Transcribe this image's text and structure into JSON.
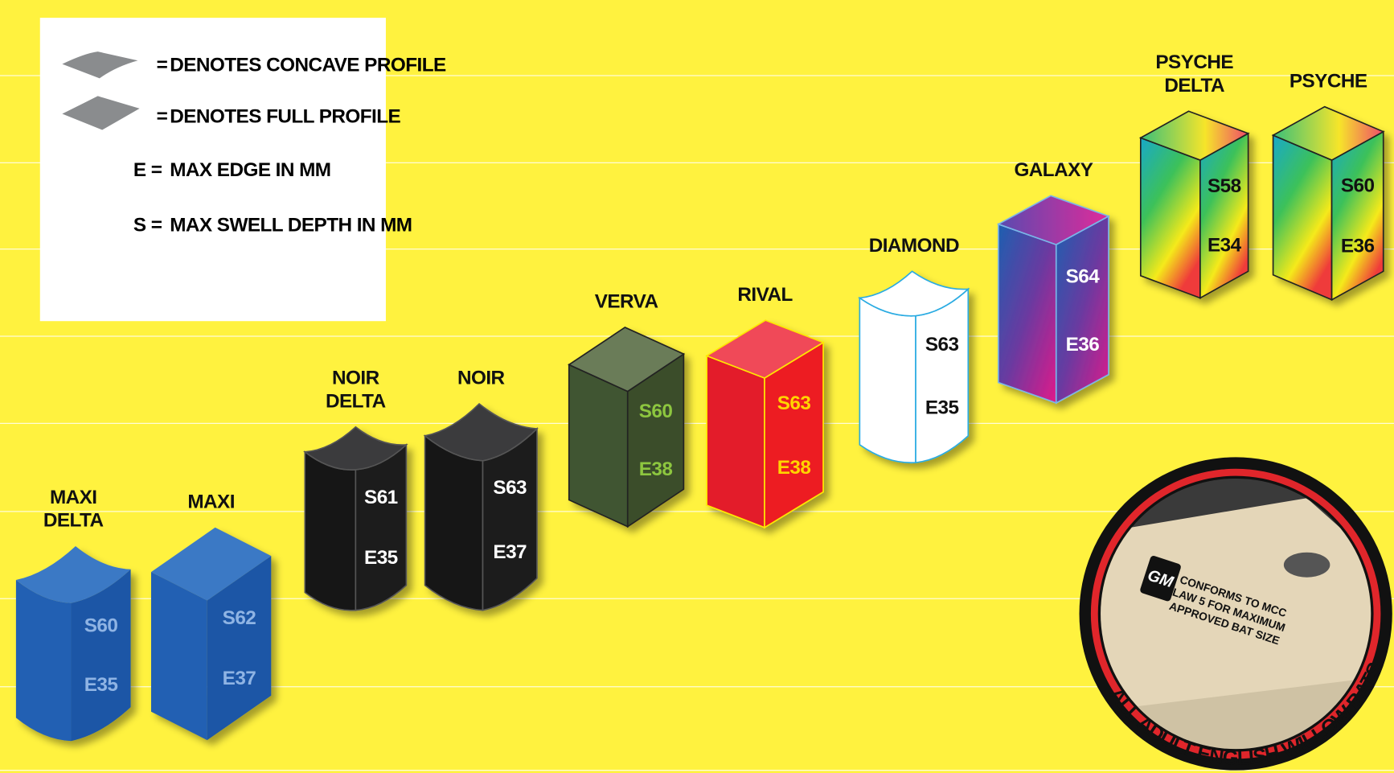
{
  "legend": [
    {
      "key": "=",
      "text": "DENOTES CONCAVE PROFILE"
    },
    {
      "key": "=",
      "text": "DENOTES FULL PROFILE"
    },
    {
      "key": "E =",
      "text": "MAX EDGE IN MM"
    },
    {
      "key": "S =",
      "text": "MAX SWELL DEPTH IN MM"
    }
  ],
  "bats": [
    {
      "name": [
        "MAXI",
        "DELTA"
      ],
      "swell": "S60",
      "edge": "E35"
    },
    {
      "name": [
        "MAXI"
      ],
      "swell": "S62",
      "edge": "E37"
    },
    {
      "name": [
        "NOIR",
        "DELTA"
      ],
      "swell": "S61",
      "edge": "E35"
    },
    {
      "name": [
        "NOIR"
      ],
      "swell": "S63",
      "edge": "E37"
    },
    {
      "name": [
        "VERVA"
      ],
      "swell": "S60",
      "edge": "E38"
    },
    {
      "name": [
        "RIVAL"
      ],
      "swell": "S63",
      "edge": "E38"
    },
    {
      "name": [
        "DIAMOND"
      ],
      "swell": "S63",
      "edge": "E35"
    },
    {
      "name": [
        "GALAXY"
      ],
      "swell": "S64",
      "edge": "E36"
    },
    {
      "name": [
        "PSYCHE",
        "DELTA"
      ],
      "swell": "S58",
      "edge": "E34"
    },
    {
      "name": [
        "PSYCHE"
      ],
      "swell": "S60",
      "edge": "E36"
    }
  ],
  "badge": {
    "logo": "GM",
    "stamp": [
      "CONFORMS TO MCC",
      "LAW 5 FOR MAXIMUM",
      "APPROVED BAT SIZE"
    ],
    "caption": "ALL ADULT ENGLISH WILLOW BATS"
  }
}
